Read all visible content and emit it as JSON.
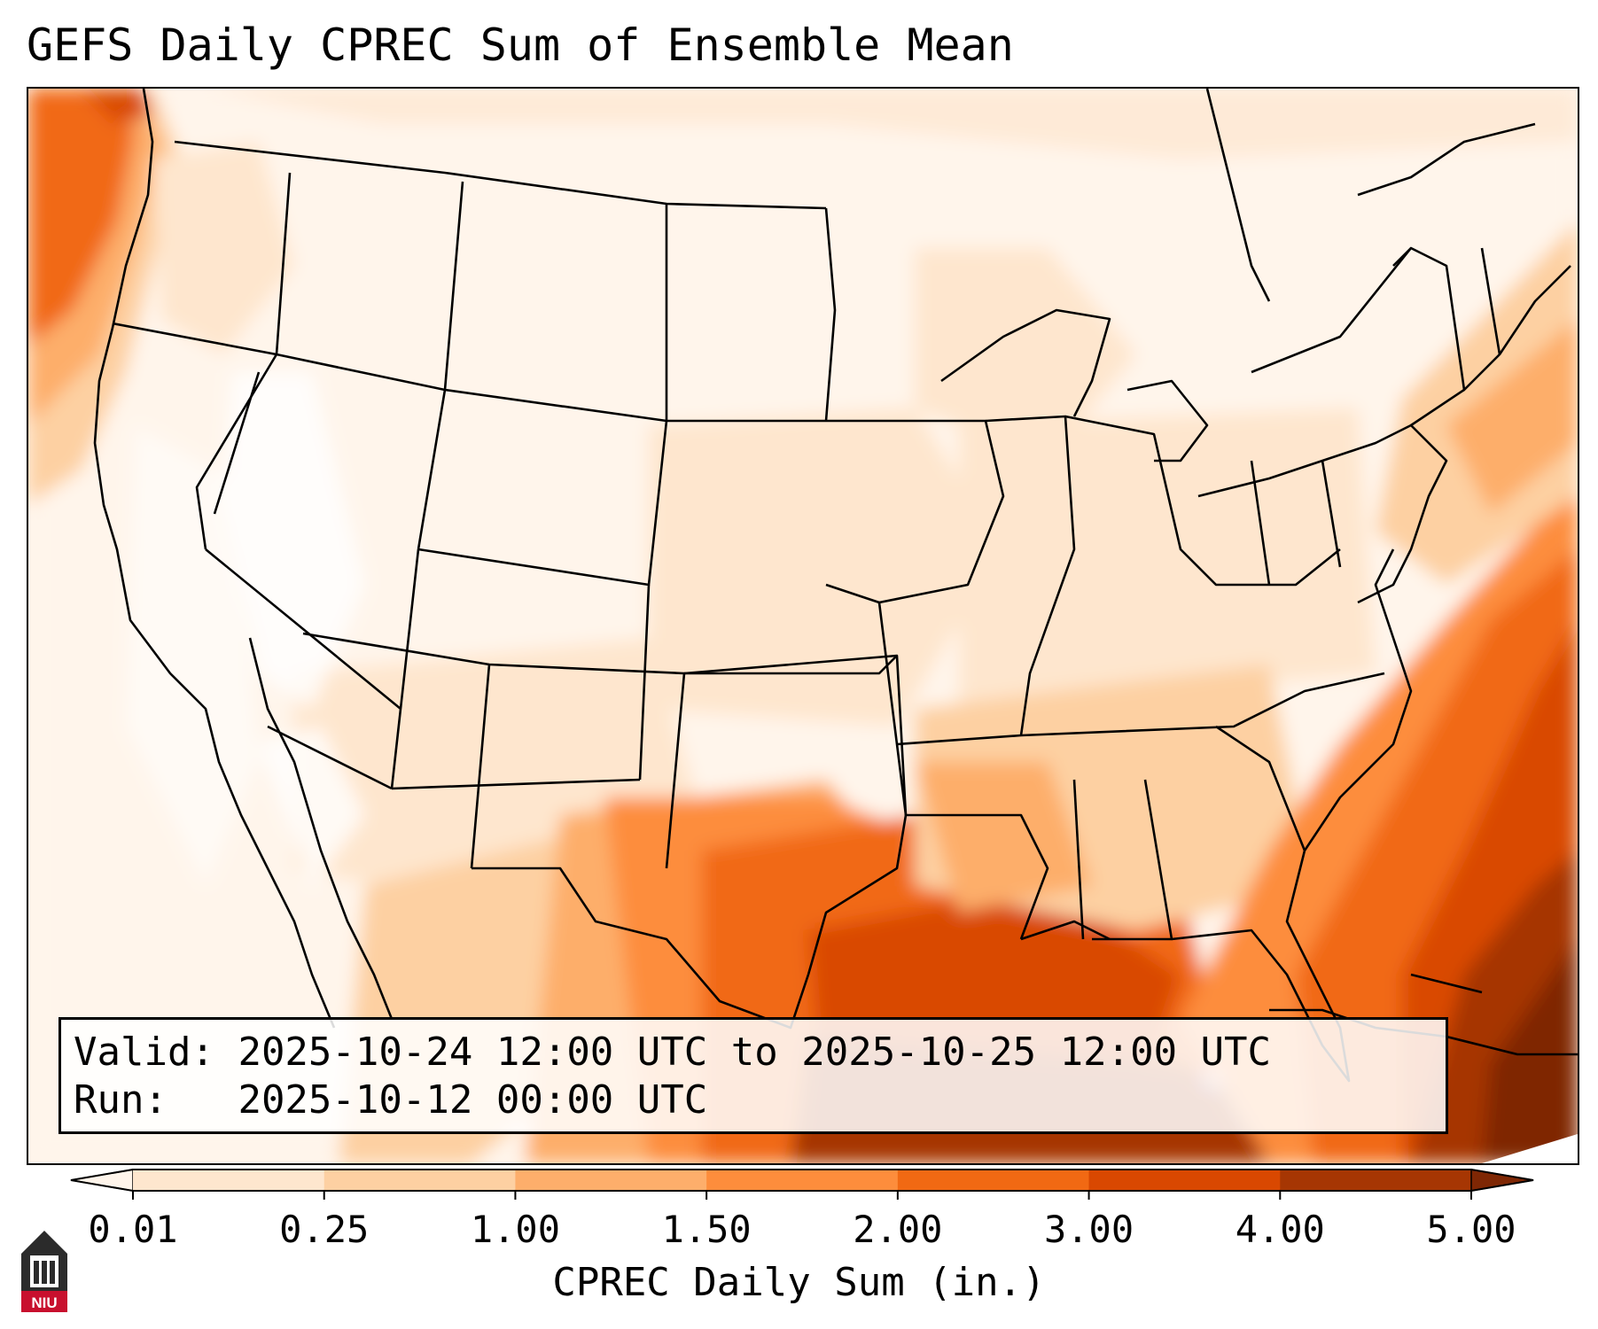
{
  "title": "GEFS Daily CPREC Sum of Ensemble Mean",
  "info": {
    "valid_label": "Valid:",
    "valid_value": "2025-10-24 12:00 UTC to 2025-10-25 12:00 UTC",
    "run_label": "Run:",
    "run_value": "2025-10-12 00:00 UTC"
  },
  "colorbar": {
    "label": "CPREC Daily Sum (in.)",
    "ticks": [
      "0.01",
      "0.25",
      "1.00",
      "1.50",
      "2.00",
      "3.00",
      "4.00",
      "5.00"
    ],
    "colors": [
      "#fff5eb",
      "#fee6ce",
      "#fdd0a2",
      "#fdae6b",
      "#fd8d3c",
      "#f16913",
      "#d94801",
      "#a63603",
      "#7f2704"
    ],
    "extend": "both"
  },
  "logo": {
    "text": "NIU",
    "primary_color": "#c8102e"
  },
  "map": {
    "projection": "lambert-conformal",
    "region": "CONUS",
    "boundaries": [
      "coastlines",
      "us-states",
      "country-borders"
    ],
    "field": "CPREC daily sum of ensemble mean"
  }
}
